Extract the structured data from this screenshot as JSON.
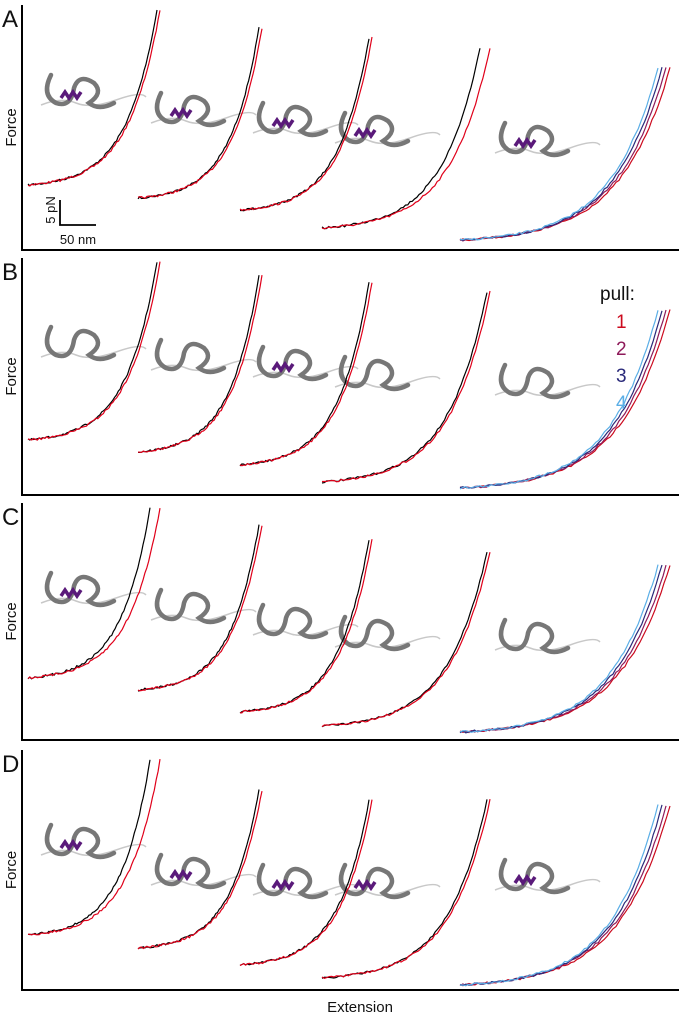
{
  "panels": [
    {
      "label": "A",
      "y_axis_label": "Force"
    },
    {
      "label": "B",
      "y_axis_label": "Force"
    },
    {
      "label": "C",
      "y_axis_label": "Force"
    },
    {
      "label": "D",
      "y_axis_label": "Force"
    }
  ],
  "scale_bar": {
    "force": "5 pN",
    "extension": "50 nm"
  },
  "legend": {
    "title": "pull:",
    "entries": [
      {
        "label": "1",
        "color": "#cc0a1e"
      },
      {
        "label": "2",
        "color": "#8e1a5a"
      },
      {
        "label": "3",
        "color": "#2a2a7a"
      },
      {
        "label": "4",
        "color": "#5aaee6"
      }
    ]
  },
  "x_axis_label": "Extension"
}
